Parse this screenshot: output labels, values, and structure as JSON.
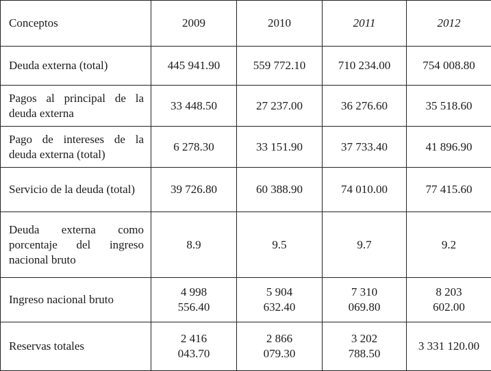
{
  "table": {
    "header": [
      "Conceptos",
      "2009",
      "2010",
      "2011",
      "2012"
    ],
    "rows": [
      [
        "Deuda externa (total)",
        "445 941.90",
        "559 772.10",
        "710 234.00",
        "754 008.80"
      ],
      [
        "Pagos al principal de la deuda externa",
        "33 448.50",
        "27 237.00",
        "36 276.60",
        "35 518.60"
      ],
      [
        "Pago de intereses de la deuda externa (total)",
        "6 278.30",
        "33 151.90",
        "37 733.40",
        "41 896.90"
      ],
      [
        "Servicio de la deuda (total)",
        "39 726.80",
        "60 388.90",
        "74 010.00",
        "77 415.60"
      ],
      [
        "Deuda externa como porcentaje del ingreso nacional bruto",
        "8.9",
        "9.5",
        "9.7",
        "9.2"
      ],
      [
        "Ingreso nacional bruto",
        "4 998 556.40",
        "5 904 632.40",
        "7 310 069.80",
        "8 203 602.00"
      ],
      [
        "Reservas totales",
        "2 416 043.70",
        "2 866 079.30",
        "3 202 788.50",
        "3 331 120.00"
      ]
    ]
  }
}
